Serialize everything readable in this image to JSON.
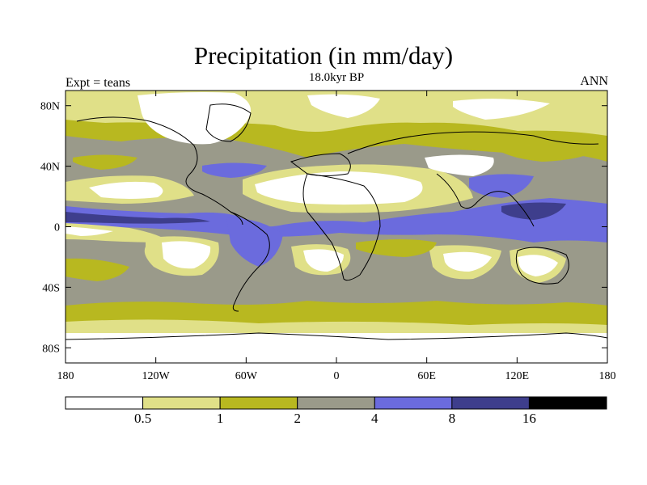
{
  "title": "Precipitation (in mm/day)",
  "subtitle": "18.0kyr BP",
  "left_label": "Expt = teans",
  "right_label": "ANN",
  "axes": {
    "x_range": [
      -180,
      180
    ],
    "y_range": [
      -90,
      90
    ],
    "x_ticks": [
      {
        "value": -180,
        "label": "180"
      },
      {
        "value": -120,
        "label": "120W"
      },
      {
        "value": -60,
        "label": "60W"
      },
      {
        "value": 0,
        "label": "0"
      },
      {
        "value": 60,
        "label": "60E"
      },
      {
        "value": 120,
        "label": "120E"
      },
      {
        "value": 180,
        "label": "180"
      }
    ],
    "y_ticks": [
      {
        "value": 80,
        "label": "80N"
      },
      {
        "value": 40,
        "label": "40N"
      },
      {
        "value": 0,
        "label": "0"
      },
      {
        "value": -40,
        "label": "40S"
      },
      {
        "value": -80,
        "label": "80S"
      }
    ]
  },
  "colorbar": {
    "colors": [
      "#ffffff",
      "#e0e088",
      "#b8b820",
      "#9a9a8a",
      "#6b6bdd",
      "#3e3e8c",
      "#000000"
    ],
    "levels": [
      "0.5",
      "1",
      "2",
      "4",
      "8",
      "16"
    ]
  },
  "map_colors": {
    "c0": "#ffffff",
    "c1": "#e0e088",
    "c2": "#b8b820",
    "c3": "#9a9a8a",
    "c4": "#6b6bdd",
    "c5": "#3e3e8c"
  }
}
